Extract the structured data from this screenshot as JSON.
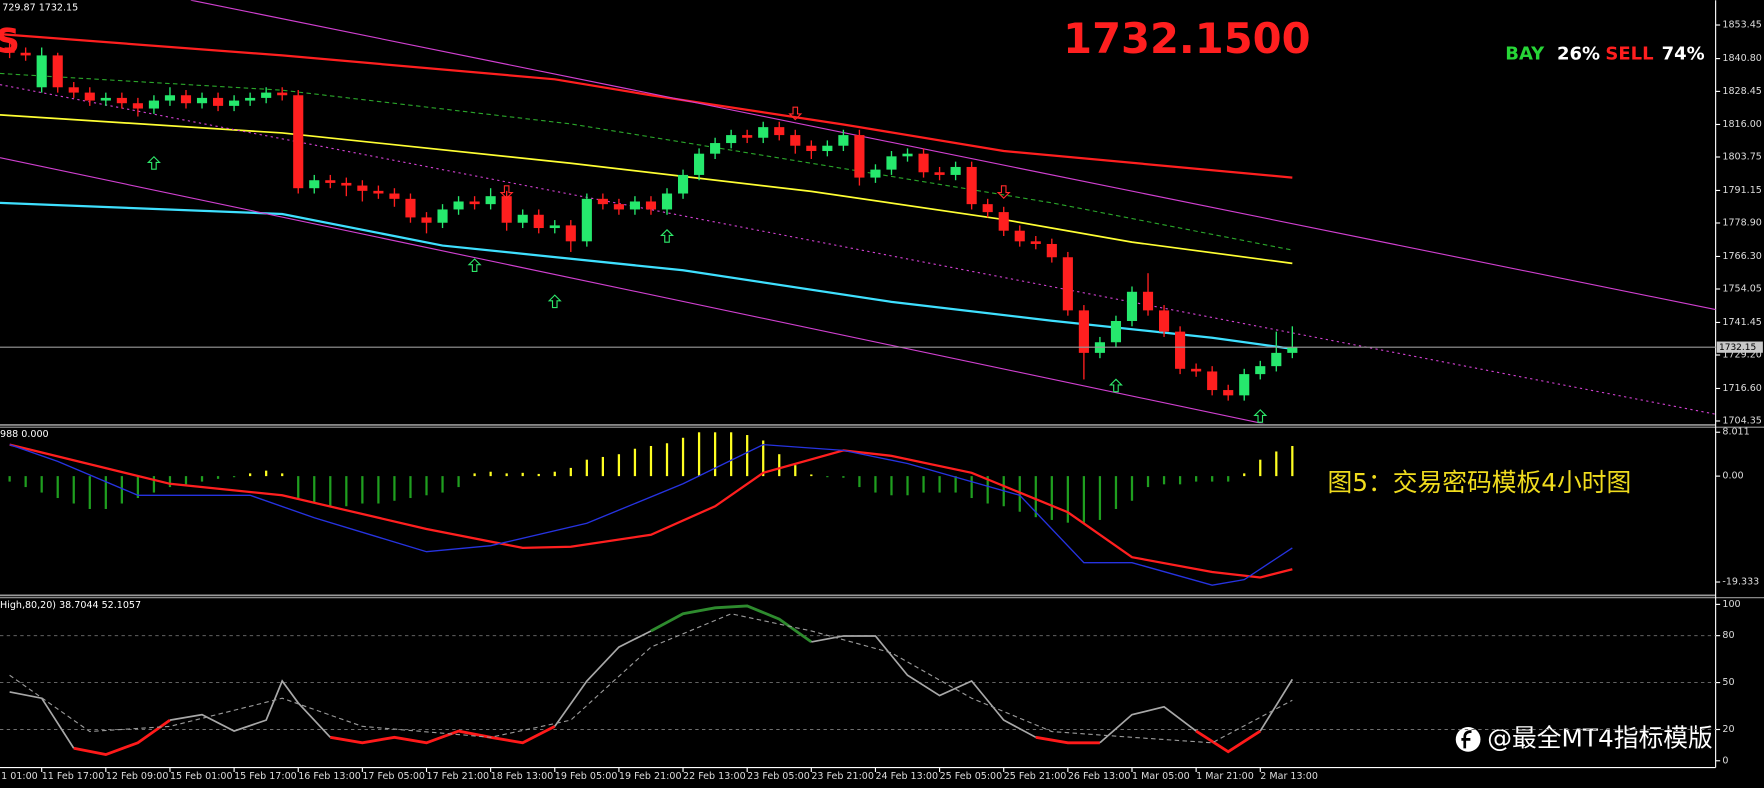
{
  "header": {
    "info": "729.87 1732.15",
    "symbol": "S",
    "price": "1732.1500",
    "buy": "BAY",
    "buy_pct": "26%",
    "sell": "SELL",
    "sell_pct": "74%"
  },
  "caption": "图5：交易密码模板4小时图",
  "watermark": "@最全MT4指标模版",
  "chart_data": [
    {
      "type": "candlestick",
      "color_up": "#26e86d",
      "color_down": "#ff1f1f",
      "xlim": [
        -0.6,
        106.4
      ],
      "xticks": [
        {
          "value": -2,
          "label": "1 01:00"
        },
        {
          "value": 2,
          "label": "11 Feb 17:00"
        },
        {
          "value": 6,
          "label": "12 Feb 09:00"
        },
        {
          "value": 10,
          "label": "15 Feb 01:00"
        },
        {
          "value": 14,
          "label": "15 Feb 17:00"
        },
        {
          "value": 18,
          "label": "16 Feb 13:00"
        },
        {
          "value": 22,
          "label": "17 Feb 05:00"
        },
        {
          "value": 26,
          "label": "17 Feb 21:00"
        },
        {
          "value": 30,
          "label": "18 Feb 13:00"
        },
        {
          "value": 34,
          "label": "19 Feb 05:00"
        },
        {
          "value": 38,
          "label": "19 Feb 21:00"
        },
        {
          "value": 42,
          "label": "22 Feb 13:00"
        },
        {
          "value": 46,
          "label": "23 Feb 05:00"
        },
        {
          "value": 50,
          "label": "23 Feb 21:00"
        },
        {
          "value": 54,
          "label": "24 Feb 13:00"
        },
        {
          "value": 58,
          "label": "25 Feb 05:00"
        },
        {
          "value": 62,
          "label": "25 Feb 21:00"
        },
        {
          "value": 66,
          "label": "26 Feb 13:00"
        },
        {
          "value": 70,
          "label": "1 Mar 05:00"
        },
        {
          "value": 74,
          "label": "1 Mar 21:00"
        },
        {
          "value": 78,
          "label": "2 Mar 13:00"
        }
      ],
      "ylim": [
        1703.5,
        1862.77
      ],
      "yticks": [
        1853.45,
        {
          "value": 1840.8,
          "label": "1840.80"
        },
        1828.45,
        {
          "value": 1816,
          "label": "1816.00"
        },
        1803.75,
        1791.15,
        {
          "value": 1778.9,
          "label": "1778.90"
        },
        {
          "value": 1766.3,
          "label": "1766.30"
        },
        1754.05,
        1741.45,
        {
          "value": 1729.2,
          "label": "1729.20"
        },
        {
          "value": 1716.6,
          "label": "1716.60"
        },
        1704.35
      ],
      "open": [
        1845,
        1843,
        1830,
        1842,
        1830,
        1828,
        1825,
        1826,
        1824,
        1822,
        1825,
        1827,
        1824,
        1826,
        1823,
        1825,
        1826,
        1828,
        1827,
        1792,
        1795,
        1794,
        1793,
        1791,
        1790,
        1788,
        1781,
        1779,
        1784,
        1787,
        1786,
        1789,
        1779,
        1782,
        1777,
        1778,
        1772,
        1788,
        1786,
        1784,
        1787,
        1784,
        1790,
        1797,
        1805,
        1809,
        1812,
        1811,
        1815,
        1812,
        1808,
        1806,
        1808,
        1812,
        1796,
        1799,
        1804,
        1805,
        1798,
        1797,
        1800,
        1786,
        1783,
        1776,
        1772,
        1771,
        1766,
        1746,
        1730,
        1734,
        1742,
        1753,
        1746,
        1738,
        1724,
        1723,
        1716,
        1714,
        1722,
        1725,
        1730
      ],
      "high": [
        1847,
        1845,
        1845,
        1843,
        1832,
        1830,
        1828,
        1828,
        1826,
        1827,
        1830,
        1829,
        1828,
        1828,
        1827,
        1828,
        1830,
        1830,
        1829,
        1797,
        1797,
        1796,
        1795,
        1793,
        1792,
        1790,
        1783,
        1786,
        1789,
        1789,
        1792,
        1791,
        1784,
        1784,
        1780,
        1780,
        1790,
        1790,
        1788,
        1789,
        1789,
        1792,
        1799,
        1807,
        1811,
        1814,
        1814,
        1817,
        1817,
        1814,
        1810,
        1810,
        1814,
        1814,
        1801,
        1806,
        1807,
        1807,
        1800,
        1802,
        1802,
        1788,
        1785,
        1778,
        1774,
        1773,
        1768,
        1748,
        1736,
        1744,
        1755,
        1760,
        1748,
        1740,
        1726,
        1725,
        1718,
        1724,
        1727,
        1738,
        1740
      ],
      "low": [
        1841,
        1840,
        1828,
        1828,
        1826,
        1823,
        1823,
        1822,
        1819,
        1820,
        1823,
        1822,
        1822,
        1821,
        1821,
        1823,
        1824,
        1825,
        1790,
        1790,
        1792,
        1789,
        1787,
        1788,
        1785,
        1779,
        1775,
        1777,
        1782,
        1784,
        1784,
        1776,
        1777,
        1775,
        1775,
        1768,
        1770,
        1784,
        1782,
        1782,
        1782,
        1782,
        1788,
        1795,
        1803,
        1807,
        1809,
        1809,
        1810,
        1805,
        1803,
        1804,
        1806,
        1793,
        1794,
        1797,
        1802,
        1796,
        1795,
        1795,
        1784,
        1781,
        1774,
        1770,
        1769,
        1764,
        1744,
        1720,
        1728,
        1732,
        1740,
        1744,
        1736,
        1722,
        1721,
        1714,
        1712,
        1712,
        1720,
        1723,
        1728
      ],
      "close": [
        1843,
        1842,
        1842,
        1830,
        1828,
        1825,
        1826,
        1824,
        1822,
        1825,
        1827,
        1824,
        1826,
        1823,
        1825,
        1826,
        1828,
        1827,
        1792,
        1795,
        1794,
        1793,
        1791,
        1790,
        1788,
        1781,
        1779,
        1784,
        1787,
        1786,
        1789,
        1779,
        1782,
        1777,
        1778,
        1772,
        1788,
        1786,
        1784,
        1787,
        1784,
        1790,
        1797,
        1805,
        1809,
        1812,
        1811,
        1815,
        1812,
        1808,
        1806,
        1808,
        1812,
        1796,
        1799,
        1804,
        1805,
        1798,
        1797,
        1800,
        1786,
        1783,
        1776,
        1772,
        1771,
        1766,
        1746,
        1730,
        1734,
        1742,
        1753,
        1746,
        1738,
        1724,
        1723,
        1716,
        1714,
        1722,
        1725,
        1730,
        1732.15
      ],
      "overlays": [
        {
          "color": "#ff1f1f",
          "width": 2,
          "x": [
            -0.6,
            17,
            34,
            40,
            52,
            62,
            80
          ],
          "values": [
            1850,
            1842,
            1833,
            1827,
            1816,
            1806,
            1796
          ]
        },
        {
          "color": "#ffff33",
          "width": 1.5,
          "x": [
            -0.6,
            17,
            35,
            50,
            62,
            70,
            80
          ],
          "values": [
            1819.6,
            1812.8,
            1801.4,
            1790.8,
            1780.2,
            1771.7,
            1763.7
          ]
        },
        {
          "color": "#3fe0ff",
          "width": 2,
          "x": [
            -0.6,
            17,
            27,
            42,
            55,
            65,
            75,
            80
          ],
          "values": [
            1786.5,
            1782.3,
            1770.4,
            1761.1,
            1749.2,
            1742.1,
            1735.7,
            1731.5
          ]
        },
        {
          "color": "#2aa52a",
          "width": 1,
          "style": "dashed",
          "x": [
            -0.6,
            17,
            35,
            50,
            65,
            80
          ],
          "values": [
            1835.2,
            1828.9,
            1816.2,
            1801.4,
            1786.5,
            1768.7
          ]
        },
        {
          "color": "#d040d0",
          "width": 1,
          "x": [
            11.3,
            106.4
          ],
          "values": [
            1862.8,
            1746.3
          ]
        },
        {
          "color": "#d040d0",
          "width": 1,
          "x": [
            -0.6,
            78.7
          ],
          "values": [
            1803.5,
            1702.7
          ]
        },
        {
          "color": "#d040d0",
          "width": 1,
          "style": "dotted",
          "x": [
            -0.6,
            106.4
          ],
          "values": [
            1831,
            1706.9
          ]
        }
      ],
      "up_arrows": {
        "color": "#2ee86a",
        "x": [
          9,
          29,
          34,
          41,
          69,
          78
        ],
        "values": [
          1801.3,
          1762.8,
          1749.2,
          1773.8,
          1717.5,
          1706
        ]
      },
      "down_arrows": {
        "color": "#ff2a2a",
        "x": [
          31,
          49,
          62
        ],
        "values": [
          1790.8,
          1820.4,
          1790.8
        ]
      },
      "bid": 1732.15
    },
    {
      "type": "macd",
      "label": "988 0.000",
      "ylim": [
        -21.36,
        8.83
      ],
      "yticks": [
        8.011,
        {
          "value": 0,
          "label": "0.00"
        },
        -19.333
      ],
      "color_up": "#ffff22",
      "color_down": "#1f9e1f",
      "histogram": [
        -1,
        -2,
        -3,
        -4,
        -5,
        -6,
        -6,
        -5,
        -4,
        -3,
        -2,
        -1.5,
        -1,
        -0.5,
        -0.2,
        0.5,
        1,
        0.5,
        -4,
        -5,
        -5.5,
        -5.5,
        -5,
        -5,
        -4.5,
        -4,
        -3.5,
        -3,
        -2,
        0.5,
        0.8,
        0.5,
        0.6,
        0.4,
        0.8,
        1.5,
        3,
        3.5,
        4,
        5,
        5.5,
        6,
        7,
        8,
        8,
        8,
        7.5,
        6.5,
        4,
        2,
        0.3,
        -0.2,
        -0.3,
        -2,
        -3,
        -3.5,
        -3.5,
        -3,
        -3,
        -3,
        -4,
        -5,
        -5.5,
        -6.5,
        -7.5,
        -8,
        -8.5,
        -8.5,
        -8,
        -6,
        -4.5,
        -2,
        -1.5,
        -1.5,
        -1,
        -1,
        -1,
        0.5,
        3,
        4.5,
        5.5
      ],
      "series": [
        {
          "color": "#ff1f1f",
          "x": [
            0,
            10,
            17,
            26,
            32,
            35,
            40,
            44,
            47,
            52,
            55,
            60,
            66,
            70,
            75,
            78,
            80
          ],
          "values": [
            5.75,
            -1.4,
            -3.5,
            -9.65,
            -13.1,
            -12.9,
            -10.7,
            -5.5,
            0.6,
            4.7,
            3.7,
            0.6,
            -6.6,
            -14.8,
            -17.5,
            -18.5,
            -17
          ]
        },
        {
          "color": "#2633e0",
          "x": [
            0,
            3,
            8,
            15,
            19,
            26,
            30,
            36,
            42,
            47,
            52,
            56,
            63,
            67,
            70,
            75,
            77,
            80
          ],
          "values": [
            5.75,
            2.7,
            -3.5,
            -3.5,
            -7.6,
            -13.8,
            -12.7,
            -8.6,
            -1.4,
            5.75,
            4.7,
            2.3,
            -3.5,
            -15.8,
            -15.8,
            -19.9,
            -18.9,
            -13.1
          ]
        }
      ]
    },
    {
      "type": "stochastic",
      "label": "High,80,20) 38.7044 52.1057",
      "ylim": [
        -4.3,
        103.6
      ],
      "yticks": [
        100,
        80,
        50,
        20,
        0
      ],
      "level_lines": true,
      "series": [
        {
          "color": "#a8a8a8",
          "high_color": "#2e8b2e",
          "low_color": "#ff1a1a",
          "x": [
            0,
            2,
            4,
            6,
            8,
            10,
            12,
            14,
            16,
            17,
            18,
            20,
            22,
            24,
            26,
            28,
            30,
            32,
            34,
            36,
            38,
            40,
            42,
            44,
            46,
            48,
            50,
            52,
            54,
            56,
            58,
            60,
            62,
            64,
            66,
            68,
            70,
            72,
            74,
            76,
            78,
            80
          ],
          "values": [
            44,
            40,
            8,
            4,
            11.5,
            26,
            29.5,
            19,
            26,
            51,
            37,
            15,
            11.5,
            15,
            11.5,
            19,
            15,
            11.5,
            22,
            51,
            72.7,
            83,
            94,
            97.8,
            99,
            90.6,
            76,
            79.8,
            79.8,
            54.7,
            41.7,
            51,
            26,
            15,
            11.5,
            11.5,
            29.5,
            34.5,
            19,
            5.8,
            19,
            52.1057
          ]
        },
        {
          "color": "#9a9a9a",
          "style": "dashed",
          "x": [
            0,
            5,
            10,
            17,
            22,
            30,
            35,
            40,
            45,
            50,
            55,
            60,
            65,
            70,
            75,
            80
          ],
          "values": [
            54.7,
            18.7,
            22,
            40,
            22,
            15,
            26,
            72.7,
            94,
            83,
            69,
            40,
            18.7,
            15,
            11.5,
            38.7044
          ]
        }
      ]
    }
  ]
}
